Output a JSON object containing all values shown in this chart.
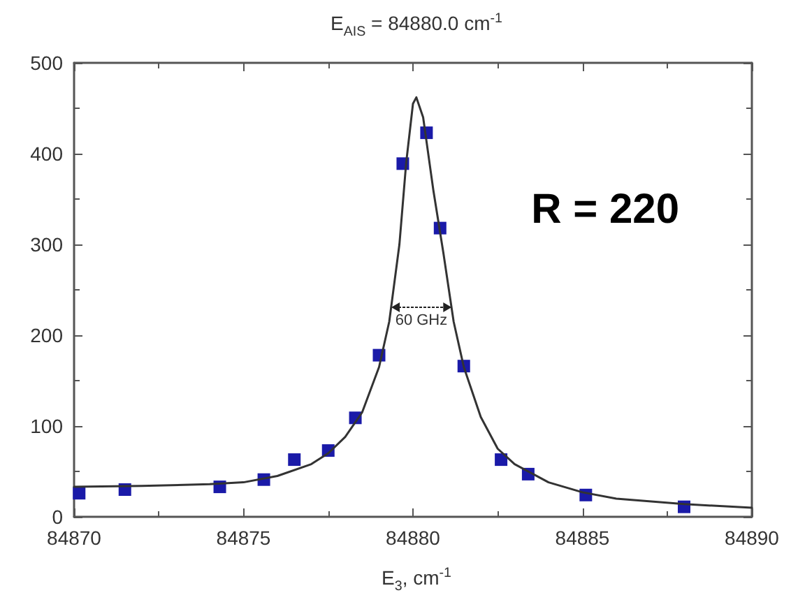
{
  "chart_data": {
    "type": "scatter",
    "title": "E$_{AIS}$ =  84880.0 cm$^{-1}$",
    "xlabel": "E$_{3}$, cm$^{-1}$",
    "xlim": [
      84870,
      84890
    ],
    "xticks": [
      84870,
      84875,
      84880,
      84885,
      84890
    ],
    "ylim": [
      0,
      500
    ],
    "yticks": [
      0,
      100,
      200,
      300,
      400,
      500
    ],
    "grid": false,
    "marker": "square",
    "series": [
      {
        "color": "#1a1aa8",
        "x": [
          84870.15,
          84871.5,
          84874.3,
          84875.6,
          84876.5,
          84877.5,
          84878.3,
          84879.0,
          84879.7,
          84880.4,
          84880.8,
          84881.5,
          84882.6,
          84883.4,
          84885.1,
          84888.0
        ],
        "values": [
          26,
          30,
          33,
          41,
          63,
          73,
          109,
          178,
          389,
          423,
          318,
          166,
          63,
          47,
          24,
          11
        ]
      },
      {
        "type": "line",
        "color": "#333333",
        "marker": "none",
        "line_style": "solid",
        "x": [
          84870,
          84872,
          84874,
          84875,
          84876,
          84877,
          84877.5,
          84878,
          84878.5,
          84879,
          84879.3,
          84879.6,
          84879.8,
          84880.0,
          84880.1,
          84880.3,
          84880.6,
          84880.9,
          84881.2,
          84881.5,
          84882,
          84882.5,
          84883,
          84884,
          84885,
          84886,
          84888,
          84890
        ],
        "values": [
          33,
          34,
          36,
          38,
          45,
          58,
          70,
          88,
          115,
          165,
          215,
          300,
          390,
          455,
          462,
          440,
          360,
          290,
          215,
          165,
          110,
          75,
          58,
          38,
          27,
          20,
          14,
          10
        ]
      }
    ],
    "annotations": [
      "R = 220",
      "60 GHz"
    ]
  }
}
